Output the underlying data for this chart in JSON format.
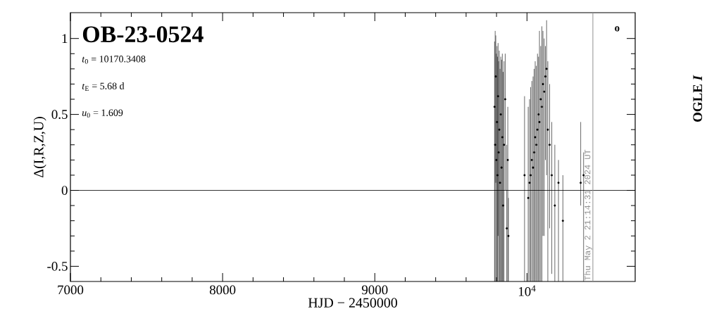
{
  "chart_data": {
    "type": "scatter",
    "title": "OB-23-0524",
    "xlabel": "HJD − 2450000",
    "ylabel": "Δ(I,R,Z,U)",
    "annotations": [
      "*t*$_{0}$ = 10170.3408",
      "*t*$_{E}$ = 5.68 d",
      "*u*$_{0}$ = 1.609",
      "o",
      "OGLE *I*",
      "Thu May  2 21:14:31 2024 UT"
    ],
    "xlim": [
      7000,
      10711
    ],
    "ylim": [
      -0.6,
      1.17
    ],
    "xticks": [
      7000,
      8000,
      9000,
      {
        "value": 10000,
        "label": "10$^{4}$"
      }
    ],
    "yticks": [
      -0.5,
      0,
      0.5,
      1
    ],
    "grid": false,
    "ref_lines": [
      {
        "axis": "y",
        "value": 0,
        "color": "#000000"
      },
      {
        "axis": "x",
        "value": 10433,
        "color": "#909090"
      }
    ],
    "series": [
      {
        "color": "#000000",
        "x": [
          9787,
          9791,
          9795,
          9799,
          9803,
          9806,
          9810,
          9814,
          9818,
          9823,
          9828,
          9833,
          9838,
          9843,
          9849,
          9857,
          9867,
          9874,
          9878,
          9984,
          10008,
          10017,
          10024,
          10032,
          10040,
          10047,
          10054,
          10061,
          10069,
          10076,
          10082,
          10090,
          10098,
          10105,
          10113,
          10121,
          10129,
          10137,
          10149,
          10163,
          10183,
          10207,
          10236,
          10353,
          10372
        ],
        "values": [
          0.55,
          0.3,
          0.75,
          0.2,
          0.45,
          0.1,
          0.62,
          0.25,
          0.4,
          0.05,
          0.5,
          0.15,
          0.35,
          -0.1,
          0.3,
          0.6,
          -0.25,
          0.2,
          -0.3,
          0.1,
          -0.05,
          0.05,
          0.1,
          0.2,
          0.15,
          0.25,
          0.35,
          0.3,
          0.4,
          0.5,
          0.45,
          0.6,
          0.55,
          0.7,
          0.65,
          0.75,
          0.8,
          0.4,
          0.3,
          0.1,
          -0.1,
          0.05,
          -0.2,
          0.05,
          0.1
        ],
        "errors": [
          [
            -0.6,
            0.98
          ],
          [
            -0.6,
            1.05
          ],
          [
            0.05,
            1.02
          ],
          [
            -0.6,
            0.9
          ],
          [
            -0.6,
            0.95
          ],
          [
            -0.6,
            0.88
          ],
          [
            -0.3,
            0.97
          ],
          [
            -0.6,
            0.85
          ],
          [
            -0.6,
            0.92
          ],
          [
            -0.6,
            0.8
          ],
          [
            -0.6,
            0.88
          ],
          [
            -0.6,
            0.86
          ],
          [
            -0.6,
            0.9
          ],
          [
            -0.6,
            0.78
          ],
          [
            -0.6,
            0.85
          ],
          [
            0.0,
            0.9
          ],
          [
            -0.6,
            0.3
          ],
          [
            -0.6,
            0.55
          ],
          [
            -0.6,
            -0.05
          ],
          [
            -0.6,
            0.62
          ],
          [
            -0.6,
            0.55
          ],
          [
            -0.6,
            0.6
          ],
          [
            -0.6,
            0.68
          ],
          [
            -0.6,
            0.72
          ],
          [
            -0.6,
            0.75
          ],
          [
            -0.6,
            0.8
          ],
          [
            -0.6,
            0.85
          ],
          [
            -0.6,
            0.82
          ],
          [
            -0.6,
            0.9
          ],
          [
            -0.6,
            0.88
          ],
          [
            -0.6,
            1.05
          ],
          [
            -0.6,
            0.95
          ],
          [
            -0.6,
            1.08
          ],
          [
            -0.3,
            1.05
          ],
          [
            -0.3,
            1.0
          ],
          [
            0.2,
            0.95
          ],
          [
            0.1,
            1.12
          ],
          [
            -0.6,
            0.85
          ],
          [
            -0.25,
            0.7
          ],
          [
            -0.55,
            0.45
          ],
          [
            -0.6,
            0.3
          ],
          [
            -0.6,
            0.2
          ],
          [
            -0.6,
            0.1
          ],
          [
            -0.1,
            0.45
          ],
          [
            -0.6,
            0.25
          ]
        ]
      }
    ]
  }
}
